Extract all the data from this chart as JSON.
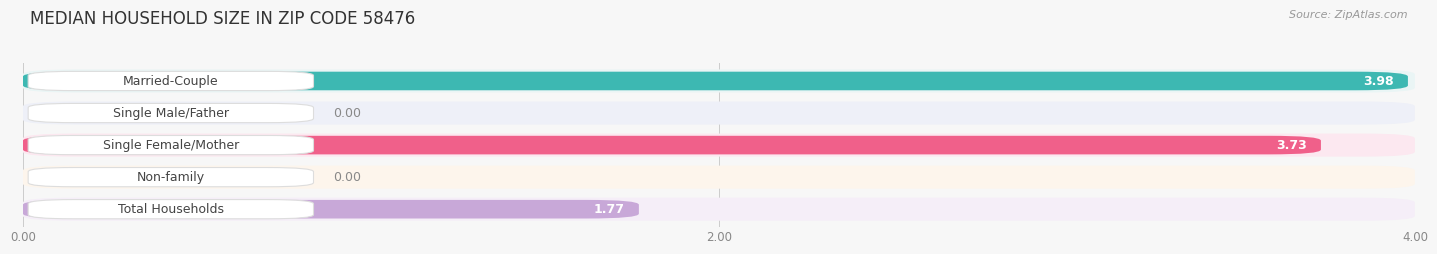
{
  "title": "MEDIAN HOUSEHOLD SIZE IN ZIP CODE 58476",
  "source": "Source: ZipAtlas.com",
  "categories": [
    "Married-Couple",
    "Single Male/Father",
    "Single Female/Mother",
    "Non-family",
    "Total Households"
  ],
  "values": [
    3.98,
    0.0,
    3.73,
    0.0,
    1.77
  ],
  "bar_colors": [
    "#3db8b2",
    "#a8b8e8",
    "#f0608a",
    "#f5cc9a",
    "#c8a8d8"
  ],
  "bar_bg_colors": [
    "#eaf5f5",
    "#eef0f8",
    "#fce8f0",
    "#fdf5ec",
    "#f5eef8"
  ],
  "xlim": [
    0,
    4.0
  ],
  "xticks": [
    0.0,
    2.0,
    4.0
  ],
  "xtick_labels": [
    "0.00",
    "2.00",
    "4.00"
  ],
  "value_labels": [
    "3.98",
    null,
    "3.73",
    null,
    "1.77"
  ],
  "zero_labels": [
    null,
    "0.00",
    null,
    "0.00",
    null
  ],
  "background_color": "#f7f7f7",
  "title_fontsize": 12,
  "label_fontsize": 9,
  "tick_fontsize": 8.5,
  "value_fontsize": 9
}
